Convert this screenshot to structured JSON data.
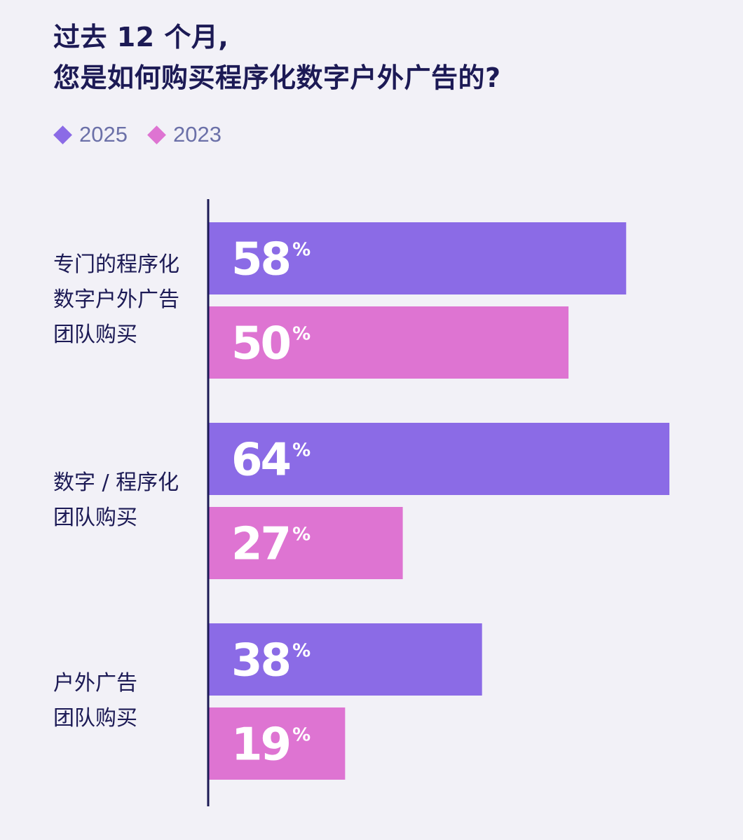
{
  "title": {
    "line1": "过去 12 个月,",
    "line2": "您是如何购买程序化数字户外广告的?"
  },
  "legend": [
    {
      "label": "2025",
      "color": "#8b6be6"
    },
    {
      "label": "2023",
      "color": "#de74d2"
    }
  ],
  "chart_data": {
    "type": "bar",
    "orientation": "horizontal",
    "categories": [
      [
        "专门的程序化",
        "数字户外广告",
        "团队购买"
      ],
      [
        "数字 / 程序化",
        "团队购买"
      ],
      [
        "户外广告",
        "团队购买"
      ]
    ],
    "series": [
      {
        "name": "2025",
        "values": [
          58,
          64,
          38
        ],
        "color": "#8b6be6"
      },
      {
        "name": "2023",
        "values": [
          50,
          27,
          19
        ],
        "color": "#de74d2"
      }
    ],
    "value_suffix": "%",
    "xlim": [
      0,
      64
    ],
    "grid": false,
    "legend_position": "top-left"
  }
}
